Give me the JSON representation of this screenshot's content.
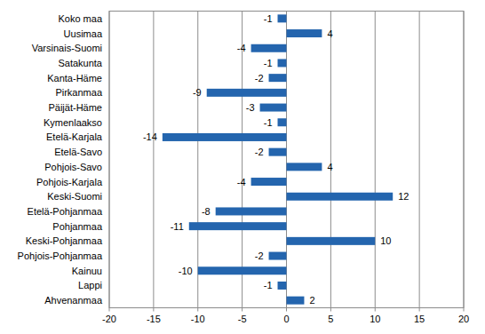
{
  "chart_data": {
    "type": "bar",
    "orientation": "horizontal",
    "categories": [
      "Koko maa",
      "Uusimaa",
      "Varsinais-Suomi",
      "Satakunta",
      "Kanta-Häme",
      "Pirkanmaa",
      "Päijät-Häme",
      "Kymenlaakso",
      "Etelä-Karjala",
      "Etelä-Savo",
      "Pohjois-Savo",
      "Pohjois-Karjala",
      "Keski-Suomi",
      "Etelä-Pohjanmaa",
      "Pohjanmaa",
      "Keski-Pohjanmaa",
      "Pohjois-Pohjanmaa",
      "Kainuu",
      "Lappi",
      "Ahvenanmaa"
    ],
    "values": [
      -1,
      4,
      -4,
      -1,
      -2,
      -9,
      -3,
      -1,
      -14,
      -2,
      4,
      -4,
      12,
      -8,
      -11,
      10,
      -2,
      -10,
      -1,
      2
    ],
    "color": "#2465ae",
    "xlim": [
      -20,
      20
    ],
    "xticks": [
      -20,
      -15,
      -10,
      -5,
      0,
      5,
      10,
      15,
      20
    ],
    "grid": true,
    "data_labels": true
  }
}
